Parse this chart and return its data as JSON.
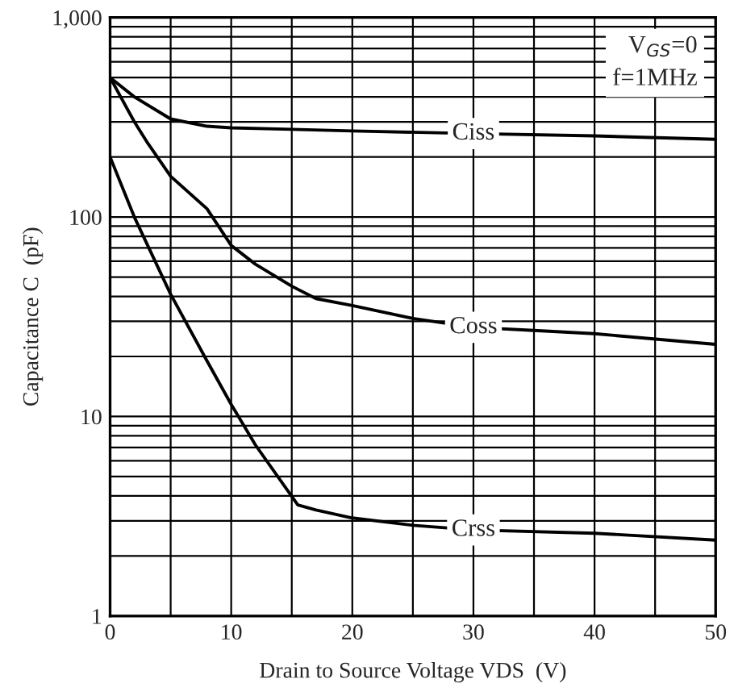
{
  "chart_data": {
    "type": "line",
    "xlabel": "Drain to Source Voltage VDS  (V)",
    "ylabel": "Capacitance C  (pF)",
    "log": "y",
    "grid": true,
    "legend": false,
    "marker": "none",
    "line_style": "solid",
    "xlim": [
      0,
      50
    ],
    "ylim": [
      1,
      1000
    ],
    "xticks": [
      0,
      {
        "value": 5,
        "label": null
      },
      10,
      {
        "value": 15,
        "label": null
      },
      20,
      {
        "value": 25,
        "label": null
      },
      30,
      {
        "value": 35,
        "label": null
      },
      40,
      {
        "value": 45,
        "label": null
      },
      50
    ],
    "yticks": [
      1,
      {
        "value": 2,
        "label": null
      },
      {
        "value": 3,
        "label": null
      },
      {
        "value": 4,
        "label": null
      },
      {
        "value": 5,
        "label": null
      },
      {
        "value": 6,
        "label": null
      },
      {
        "value": 7,
        "label": null
      },
      {
        "value": 8,
        "label": null
      },
      {
        "value": 9,
        "label": null
      },
      10,
      {
        "value": 20,
        "label": null
      },
      {
        "value": 30,
        "label": null
      },
      {
        "value": 40,
        "label": null
      },
      {
        "value": 50,
        "label": null
      },
      {
        "value": 60,
        "label": null
      },
      {
        "value": 70,
        "label": null
      },
      {
        "value": 80,
        "label": null
      },
      {
        "value": 90,
        "label": null
      },
      100,
      {
        "value": 200,
        "label": null
      },
      {
        "value": 300,
        "label": null
      },
      {
        "value": 400,
        "label": null
      },
      {
        "value": 500,
        "label": null
      },
      {
        "value": 600,
        "label": null
      },
      {
        "value": 700,
        "label": null
      },
      {
        "value": 800,
        "label": null
      },
      {
        "value": 900,
        "label": null
      },
      {
        "value": 1000,
        "label": "1,000"
      }
    ],
    "series": [
      {
        "name": "Ciss",
        "color": "#000000",
        "x": [
          0,
          2,
          5,
          8,
          10,
          15,
          20,
          30,
          40,
          50
        ],
        "values": [
          500,
          400,
          310,
          285,
          280,
          275,
          270,
          262,
          255,
          245
        ]
      },
      {
        "name": "Coss",
        "color": "#000000",
        "x": [
          0,
          2,
          3,
          5,
          8,
          10,
          12,
          15,
          17,
          20,
          25,
          30,
          35,
          40,
          50
        ],
        "values": [
          500,
          300,
          240,
          160,
          110,
          72,
          58,
          45,
          39,
          36,
          31,
          28,
          27,
          26,
          23
        ]
      },
      {
        "name": "Crss",
        "color": "#000000",
        "x": [
          0,
          2,
          5,
          8,
          10,
          12,
          15.5,
          17,
          20,
          25,
          30,
          40,
          50
        ],
        "values": [
          200,
          100,
          41,
          19,
          11.5,
          7.2,
          3.6,
          3.4,
          3.1,
          2.85,
          2.7,
          2.6,
          2.4
        ]
      }
    ],
    "annotations": [
      "V$_{GS}$=0\nf=1MHz"
    ]
  }
}
